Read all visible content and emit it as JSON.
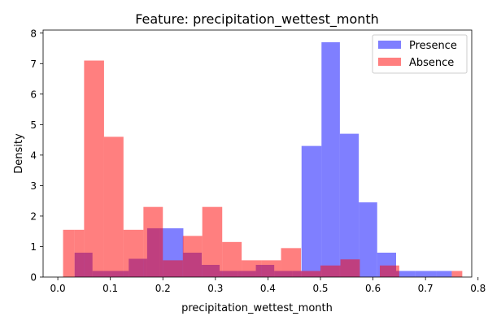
{
  "chart_data": {
    "type": "bar",
    "title": "Feature: precipitation_wettest_month",
    "xlabel": "precipitation_wettest_month",
    "ylabel": "Density",
    "xlim": [
      -0.028,
      0.788
    ],
    "ylim": [
      0,
      8.1
    ],
    "xticks": [
      "0.0",
      "0.1",
      "0.2",
      "0.3",
      "0.4",
      "0.5",
      "0.6",
      "0.7",
      "0.8"
    ],
    "yticks": [
      "0",
      "1",
      "2",
      "3",
      "4",
      "5",
      "6",
      "7",
      "8"
    ],
    "legend_position": "top-right",
    "series": [
      {
        "name": "Presence",
        "color": "#0000ff",
        "opacity": 0.5,
        "bins": [
          {
            "x0": 0.032,
            "x1": 0.066,
            "value": 0.8
          },
          {
            "x0": 0.066,
            "x1": 0.101,
            "value": 0.2
          },
          {
            "x0": 0.101,
            "x1": 0.135,
            "value": 0.2
          },
          {
            "x0": 0.135,
            "x1": 0.17,
            "value": 0.6
          },
          {
            "x0": 0.17,
            "x1": 0.194,
            "value": 1.6
          },
          {
            "x0": 0.194,
            "x1": 0.239,
            "value": 1.6
          },
          {
            "x0": 0.239,
            "x1": 0.274,
            "value": 0.8
          },
          {
            "x0": 0.274,
            "x1": 0.308,
            "value": 0.4
          },
          {
            "x0": 0.308,
            "x1": 0.343,
            "value": 0.2
          },
          {
            "x0": 0.343,
            "x1": 0.377,
            "value": 0.2
          },
          {
            "x0": 0.377,
            "x1": 0.412,
            "value": 0.4
          },
          {
            "x0": 0.412,
            "x1": 0.447,
            "value": 0.2
          },
          {
            "x0": 0.447,
            "x1": 0.464,
            "value": 0.2
          },
          {
            "x0": 0.464,
            "x1": 0.502,
            "value": 4.3
          },
          {
            "x0": 0.502,
            "x1": 0.537,
            "value": 7.7
          },
          {
            "x0": 0.537,
            "x1": 0.573,
            "value": 4.7
          },
          {
            "x0": 0.573,
            "x1": 0.608,
            "value": 2.45
          },
          {
            "x0": 0.608,
            "x1": 0.644,
            "value": 0.8
          },
          {
            "x0": 0.644,
            "x1": 0.68,
            "value": 0.2
          },
          {
            "x0": 0.68,
            "x1": 0.72,
            "value": 0.2
          },
          {
            "x0": 0.72,
            "x1": 0.75,
            "value": 0.2
          }
        ]
      },
      {
        "name": "Absence",
        "color": "#ff0000",
        "opacity": 0.5,
        "bins": [
          {
            "x0": 0.01,
            "x1": 0.032,
            "value": 1.55
          },
          {
            "x0": 0.032,
            "x1": 0.05,
            "value": 1.55
          },
          {
            "x0": 0.05,
            "x1": 0.088,
            "value": 7.1
          },
          {
            "x0": 0.088,
            "x1": 0.125,
            "value": 4.6
          },
          {
            "x0": 0.125,
            "x1": 0.163,
            "value": 1.55
          },
          {
            "x0": 0.163,
            "x1": 0.2,
            "value": 2.3
          },
          {
            "x0": 0.2,
            "x1": 0.238,
            "value": 0.55
          },
          {
            "x0": 0.238,
            "x1": 0.275,
            "value": 1.35
          },
          {
            "x0": 0.275,
            "x1": 0.313,
            "value": 2.3
          },
          {
            "x0": 0.313,
            "x1": 0.35,
            "value": 1.15
          },
          {
            "x0": 0.35,
            "x1": 0.388,
            "value": 0.55
          },
          {
            "x0": 0.388,
            "x1": 0.425,
            "value": 0.55
          },
          {
            "x0": 0.425,
            "x1": 0.463,
            "value": 0.95
          },
          {
            "x0": 0.463,
            "x1": 0.5,
            "value": 0.2
          },
          {
            "x0": 0.5,
            "x1": 0.538,
            "value": 0.38
          },
          {
            "x0": 0.538,
            "x1": 0.575,
            "value": 0.58
          },
          {
            "x0": 0.575,
            "x1": 0.613,
            "value": 0.0
          },
          {
            "x0": 0.613,
            "x1": 0.65,
            "value": 0.38
          },
          {
            "x0": 0.65,
            "x1": 0.688,
            "value": 0.0
          },
          {
            "x0": 0.688,
            "x1": 0.725,
            "value": 0.0
          },
          {
            "x0": 0.725,
            "x1": 0.75,
            "value": 0.0
          },
          {
            "x0": 0.75,
            "x1": 0.77,
            "value": 0.2
          }
        ]
      }
    ]
  }
}
